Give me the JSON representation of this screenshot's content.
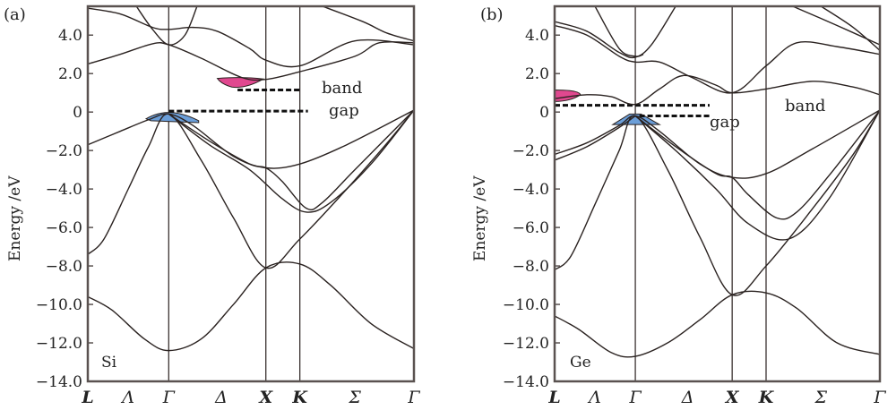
{
  "chart_data": [
    {
      "type": "line",
      "panel_label": "(a)",
      "material": "Si",
      "ylabel": "Energy /eV",
      "ylim": [
        -14.0,
        5.5
      ],
      "yticks": [
        "4.0",
        "2.0",
        "0",
        "−2.0",
        "−4.0",
        "−6.0",
        "−8.0",
        "−10.0",
        "−12.0",
        "−14.0"
      ],
      "ytick_values": [
        4,
        2,
        0,
        -2,
        -4,
        -6,
        -8,
        -10,
        -12,
        -14
      ],
      "k_points": [
        "L",
        "Λ",
        "Γ",
        "Δ",
        "X",
        "K",
        "Σ",
        "Γ"
      ],
      "k_positions": [
        0,
        0.5,
        1.0,
        1.65,
        2.2,
        2.62,
        3.3,
        4.03
      ],
      "symmetry_lines": [
        1.0,
        2.2,
        2.62
      ],
      "bands": [
        {
          "name": "band-1",
          "points": [
            [
              0,
              -9.6
            ],
            [
              0.3,
              -10.3
            ],
            [
              0.7,
              -11.8
            ],
            [
              1.0,
              -12.4
            ],
            [
              1.4,
              -11.8
            ],
            [
              1.8,
              -10.0
            ],
            [
              2.2,
              -8.1
            ],
            [
              2.62,
              -7.9
            ],
            [
              3.0,
              -9.0
            ],
            [
              3.5,
              -11.0
            ],
            [
              4.03,
              -12.3
            ]
          ]
        },
        {
          "name": "band-2",
          "points": [
            [
              0,
              -7.4
            ],
            [
              0.2,
              -6.6
            ],
            [
              0.5,
              -4.0
            ],
            [
              0.75,
              -1.8
            ],
            [
              1.0,
              -0.1
            ],
            [
              1.4,
              -2.5
            ],
            [
              1.8,
              -5.5
            ],
            [
              2.2,
              -8.1
            ],
            [
              2.62,
              -6.6
            ],
            [
              3.2,
              -4.0
            ],
            [
              3.7,
              -1.6
            ],
            [
              4.03,
              0.1
            ]
          ]
        },
        {
          "name": "band-3",
          "points": [
            [
              0,
              -1.7
            ],
            [
              0.4,
              -1.0
            ],
            [
              0.75,
              -0.4
            ],
            [
              1.0,
              -0.1
            ],
            [
              1.3,
              -0.7
            ],
            [
              1.8,
              -2.3
            ],
            [
              2.2,
              -2.9
            ],
            [
              2.62,
              -2.7
            ],
            [
              3.2,
              -1.7
            ],
            [
              4.03,
              0.1
            ]
          ]
        },
        {
          "name": "band-4",
          "points": [
            [
              1.0,
              -0.1
            ],
            [
              1.5,
              -1.5
            ],
            [
              2.0,
              -2.7
            ],
            [
              2.2,
              -2.9
            ],
            [
              2.4,
              -3.6
            ],
            [
              2.7,
              -5.0
            ],
            [
              2.9,
              -4.7
            ],
            [
              3.3,
              -3.0
            ],
            [
              4.03,
              0.1
            ]
          ]
        },
        {
          "name": "band-5",
          "points": [
            [
              1.0,
              -0.1
            ],
            [
              1.5,
              -1.7
            ],
            [
              2.0,
              -3.0
            ],
            [
              2.4,
              -4.5
            ],
            [
              2.7,
              -5.2
            ],
            [
              3.0,
              -4.7
            ],
            [
              3.5,
              -2.7
            ],
            [
              4.03,
              0.1
            ]
          ]
        },
        {
          "name": "band-6",
          "points": [
            [
              0,
              2.5
            ],
            [
              0.4,
              3.0
            ],
            [
              0.8,
              3.55
            ],
            [
              1.0,
              3.5
            ],
            [
              1.4,
              2.8
            ],
            [
              1.9,
              1.8
            ],
            [
              2.2,
              1.7
            ],
            [
              2.62,
              2.1
            ],
            [
              3.3,
              2.9
            ],
            [
              3.6,
              3.6
            ],
            [
              4.03,
              3.6
            ]
          ]
        },
        {
          "name": "band-7",
          "points": [
            [
              0,
              5.4
            ],
            [
              0.4,
              5.1
            ],
            [
              0.8,
              4.4
            ],
            [
              1.0,
              4.3
            ],
            [
              1.3,
              4.4
            ],
            [
              1.6,
              4.2
            ],
            [
              2.0,
              3.3
            ],
            [
              2.2,
              2.7
            ],
            [
              2.62,
              2.4
            ],
            [
              3.3,
              3.7
            ],
            [
              4.03,
              3.5
            ]
          ]
        },
        {
          "name": "band-8",
          "points": [
            [
              0.6,
              5.5
            ],
            [
              0.8,
              4.3
            ],
            [
              1.0,
              3.5
            ],
            [
              1.2,
              4.0
            ],
            [
              1.35,
              5.5
            ]
          ]
        },
        {
          "name": "band-9",
          "points": [
            [
              2.9,
              5.5
            ],
            [
              3.4,
              4.7
            ],
            [
              3.7,
              4.1
            ],
            [
              4.03,
              3.7
            ]
          ]
        }
      ],
      "valence_max_region": {
        "color": "#6b9ed8"
      },
      "conduction_min_region": {
        "color": "#e0488f"
      },
      "annotations": [
        "band",
        "gap"
      ]
    },
    {
      "type": "line",
      "panel_label": "(b)",
      "material": "Ge",
      "ylabel": "Energy /eV",
      "ylim": [
        -14.0,
        5.5
      ],
      "yticks": [
        "4.0",
        "2.0",
        "0",
        "−2.0",
        "−4.0",
        "−6.0",
        "−8.0",
        "−10.0",
        "−12.0",
        "−14.0"
      ],
      "ytick_values": [
        4,
        2,
        0,
        -2,
        -4,
        -6,
        -8,
        -10,
        -12,
        -14
      ],
      "k_points": [
        "L",
        "Λ",
        "Γ",
        "Δ",
        "X",
        "K",
        "Σ",
        "Γ"
      ],
      "k_positions": [
        0,
        0.5,
        1.0,
        1.65,
        2.2,
        2.62,
        3.3,
        4.03
      ],
      "symmetry_lines": [
        1.0,
        2.2,
        2.62
      ],
      "bands": [
        {
          "name": "band-1",
          "points": [
            [
              0,
              -10.6
            ],
            [
              0.3,
              -11.3
            ],
            [
              0.7,
              -12.5
            ],
            [
              1.0,
              -12.7
            ],
            [
              1.4,
              -12.0
            ],
            [
              1.8,
              -10.8
            ],
            [
              2.2,
              -9.5
            ],
            [
              2.62,
              -9.4
            ],
            [
              3.0,
              -10.2
            ],
            [
              3.5,
              -12.0
            ],
            [
              4.03,
              -12.6
            ]
          ]
        },
        {
          "name": "band-2",
          "points": [
            [
              0,
              -8.2
            ],
            [
              0.2,
              -7.5
            ],
            [
              0.5,
              -4.8
            ],
            [
              0.8,
              -2.0
            ],
            [
              1.0,
              -0.2
            ],
            [
              1.4,
              -3.0
            ],
            [
              1.8,
              -6.5
            ],
            [
              2.2,
              -9.5
            ],
            [
              2.62,
              -8.0
            ],
            [
              3.2,
              -5.0
            ],
            [
              3.7,
              -2.2
            ],
            [
              4.03,
              0.1
            ]
          ]
        },
        {
          "name": "band-3",
          "points": [
            [
              0,
              -2.2
            ],
            [
              0.4,
              -1.6
            ],
            [
              0.8,
              -0.7
            ],
            [
              1.0,
              -0.2
            ],
            [
              1.3,
              -1.0
            ],
            [
              1.8,
              -2.7
            ],
            [
              2.2,
              -3.4
            ],
            [
              2.62,
              -3.2
            ],
            [
              3.2,
              -1.9
            ],
            [
              4.03,
              0.1
            ]
          ]
        },
        {
          "name": "band-3b",
          "points": [
            [
              0,
              -2.5
            ],
            [
              0.4,
              -1.8
            ],
            [
              0.8,
              -0.8
            ],
            [
              1.0,
              -0.2
            ]
          ]
        },
        {
          "name": "band-4",
          "points": [
            [
              1.0,
              -0.2
            ],
            [
              1.5,
              -1.8
            ],
            [
              2.0,
              -3.2
            ],
            [
              2.2,
              -3.4
            ],
            [
              2.4,
              -4.3
            ],
            [
              2.75,
              -5.5
            ],
            [
              3.0,
              -5.2
            ],
            [
              3.4,
              -3.3
            ],
            [
              4.03,
              0.1
            ]
          ]
        },
        {
          "name": "band-5",
          "points": [
            [
              1.0,
              -0.2
            ],
            [
              1.5,
              -2.0
            ],
            [
              2.0,
              -4.0
            ],
            [
              2.4,
              -5.8
            ],
            [
              2.9,
              -6.6
            ],
            [
              3.4,
              -4.5
            ],
            [
              4.03,
              0.1
            ]
          ]
        },
        {
          "name": "band-6",
          "points": [
            [
              0,
              0.7
            ],
            [
              0.4,
              0.9
            ],
            [
              0.7,
              0.8
            ],
            [
              1.0,
              0.4
            ],
            [
              1.3,
              1.2
            ],
            [
              1.6,
              1.9
            ],
            [
              2.0,
              1.4
            ],
            [
              2.2,
              1.0
            ],
            [
              2.62,
              1.2
            ],
            [
              3.2,
              1.6
            ],
            [
              3.7,
              1.3
            ],
            [
              4.03,
              0.9
            ]
          ]
        },
        {
          "name": "band-7",
          "points": [
            [
              0,
              4.5
            ],
            [
              0.4,
              4.0
            ],
            [
              0.8,
              2.9
            ],
            [
              1.0,
              2.6
            ],
            [
              1.3,
              2.6
            ],
            [
              1.7,
              1.8
            ],
            [
              2.2,
              1.0
            ],
            [
              2.62,
              2.4
            ],
            [
              3.0,
              3.6
            ],
            [
              3.5,
              3.4
            ],
            [
              4.03,
              3.0
            ]
          ]
        },
        {
          "name": "band-8",
          "points": [
            [
              0,
              4.7
            ],
            [
              0.4,
              4.2
            ],
            [
              0.8,
              3.1
            ],
            [
              1.0,
              2.85
            ],
            [
              1.2,
              3.5
            ],
            [
              1.5,
              5.5
            ]
          ]
        },
        {
          "name": "band-9",
          "points": [
            [
              0.5,
              5.5
            ],
            [
              0.8,
              3.3
            ],
            [
              1.0,
              2.9
            ],
            [
              1.1,
              3.0
            ]
          ]
        },
        {
          "name": "band-10",
          "points": [
            [
              2.95,
              5.5
            ],
            [
              3.5,
              4.5
            ],
            [
              4.03,
              3.5
            ]
          ]
        },
        {
          "name": "band-11",
          "points": [
            [
              3.3,
              5.5
            ],
            [
              3.7,
              4.4
            ],
            [
              4.03,
              3.2
            ]
          ]
        }
      ],
      "valence_max_region": {
        "color": "#6b9ed8"
      },
      "conduction_min_region": {
        "color": "#e0488f"
      },
      "annotations": [
        "band",
        "gap"
      ]
    }
  ],
  "colors": {
    "frame": "#5a5250",
    "curve": "#2a2220",
    "grid_line": "#3a3230"
  }
}
